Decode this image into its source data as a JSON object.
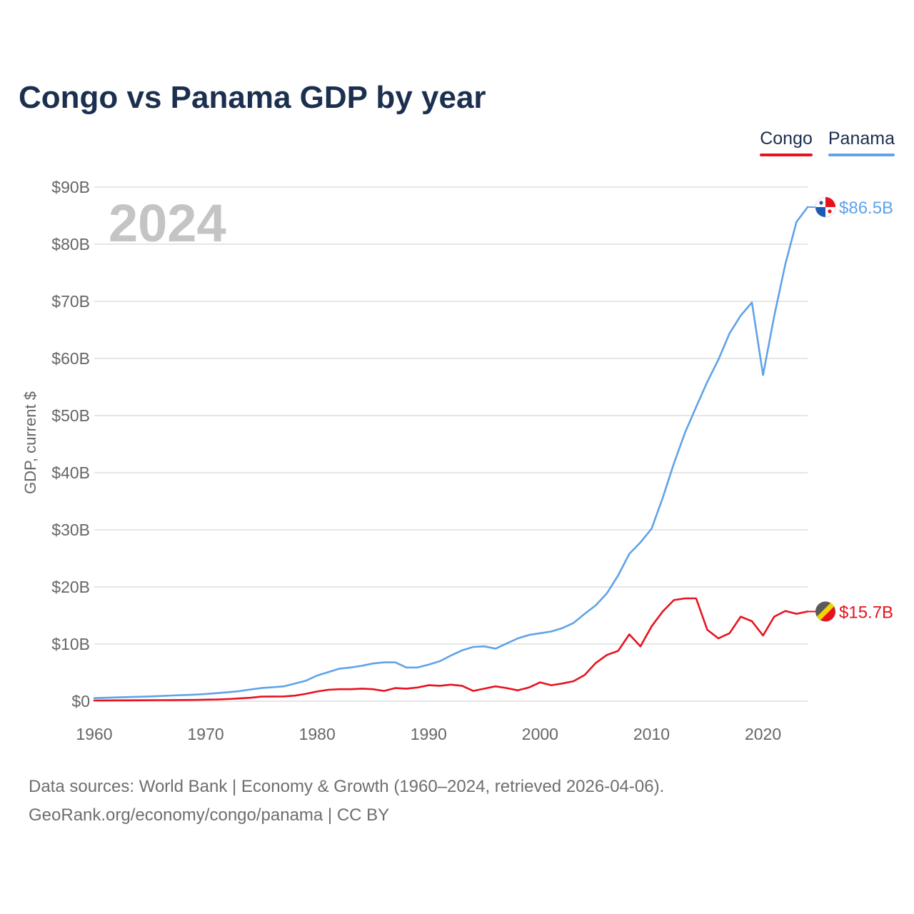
{
  "title": "Congo vs Panama GDP by year",
  "legend": [
    {
      "label": "Congo",
      "color": "#e8121e"
    },
    {
      "label": "Panama",
      "color": "#5fa3e8"
    }
  ],
  "source": {
    "line1": "Data sources: World Bank | Economy & Growth (1960–2024, retrieved 2026-04-06).",
    "line2": "GeoRank.org/economy/congo/panama | CC BY"
  },
  "chart_data": {
    "type": "line",
    "title": "Congo vs Panama GDP by year",
    "year_label": "2024",
    "xlabel": "",
    "ylabel": "GDP, current $",
    "xlim": [
      1960,
      2024
    ],
    "ylim": [
      0,
      90
    ],
    "x_ticks": [
      1960,
      1970,
      1980,
      1990,
      2000,
      2010,
      2020
    ],
    "y_ticks": [
      0,
      10,
      20,
      30,
      40,
      50,
      60,
      70,
      80,
      90
    ],
    "y_tick_labels": [
      "$0",
      "$10B",
      "$20B",
      "$30B",
      "$40B",
      "$50B",
      "$60B",
      "$70B",
      "$80B",
      "$90B"
    ],
    "units": "billions of current US$",
    "x": [
      1960,
      1961,
      1962,
      1963,
      1964,
      1965,
      1966,
      1967,
      1968,
      1969,
      1970,
      1971,
      1972,
      1973,
      1974,
      1975,
      1976,
      1977,
      1978,
      1979,
      1980,
      1981,
      1982,
      1983,
      1984,
      1985,
      1986,
      1987,
      1988,
      1989,
      1990,
      1991,
      1992,
      1993,
      1994,
      1995,
      1996,
      1997,
      1998,
      1999,
      2000,
      2001,
      2002,
      2003,
      2004,
      2005,
      2006,
      2007,
      2008,
      2009,
      2010,
      2011,
      2012,
      2013,
      2014,
      2015,
      2016,
      2017,
      2018,
      2019,
      2020,
      2021,
      2022,
      2023,
      2024
    ],
    "series": [
      {
        "name": "Panama",
        "color": "#5fa3e8",
        "end_label": "$86.5B",
        "values": [
          0.54,
          0.6,
          0.66,
          0.72,
          0.77,
          0.84,
          0.91,
          1.0,
          1.07,
          1.15,
          1.26,
          1.41,
          1.58,
          1.76,
          2.05,
          2.3,
          2.45,
          2.6,
          3.1,
          3.6,
          4.5,
          5.1,
          5.7,
          5.9,
          6.2,
          6.6,
          6.8,
          6.8,
          5.9,
          5.9,
          6.4,
          7.0,
          8.0,
          8.9,
          9.5,
          9.6,
          9.2,
          10.1,
          11.0,
          11.6,
          11.9,
          12.2,
          12.8,
          13.7,
          15.3,
          16.8,
          18.9,
          22.0,
          25.8,
          27.8,
          30.2,
          35.6,
          41.6,
          47.0,
          51.5,
          55.9,
          59.8,
          64.4,
          67.5,
          69.8,
          57.1,
          67.4,
          76.5,
          83.9,
          86.5
        ]
      },
      {
        "name": "Congo",
        "color": "#e8121e",
        "end_label": "$15.7B",
        "values": [
          0.13,
          0.14,
          0.15,
          0.15,
          0.16,
          0.17,
          0.19,
          0.2,
          0.21,
          0.22,
          0.27,
          0.3,
          0.37,
          0.49,
          0.6,
          0.8,
          0.83,
          0.84,
          0.97,
          1.3,
          1.7,
          2.0,
          2.1,
          2.1,
          2.2,
          2.1,
          1.8,
          2.3,
          2.2,
          2.4,
          2.8,
          2.7,
          2.9,
          2.7,
          1.8,
          2.2,
          2.6,
          2.3,
          1.9,
          2.4,
          3.3,
          2.8,
          3.1,
          3.5,
          4.6,
          6.7,
          8.1,
          8.8,
          11.7,
          9.6,
          13.1,
          15.7,
          17.7,
          18.0,
          18.0,
          12.5,
          11.0,
          11.9,
          14.8,
          14.0,
          11.5,
          14.8,
          15.8,
          15.3,
          15.7
        ]
      }
    ]
  }
}
